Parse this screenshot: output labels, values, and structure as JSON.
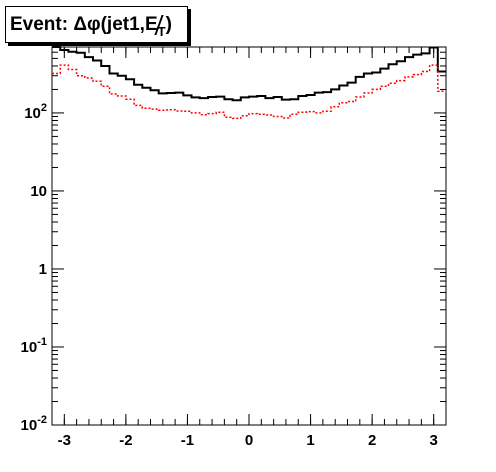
{
  "chart_data": {
    "type": "histogram",
    "title": {
      "prefix": "Event: ",
      "delta": "Δ",
      "phi": "φ",
      "args": "(jet1,",
      "met": "E",
      "met_sub": "T",
      "close": ")"
    },
    "xlabel": "",
    "ylabel": "",
    "xlim": [
      -3.2,
      3.2
    ],
    "ylim": [
      0.01,
      700
    ],
    "yscale": "log",
    "x_ticks": [
      -3,
      -2,
      -1,
      0,
      1,
      2,
      3
    ],
    "x_tick_labels": [
      "-3",
      "-2",
      "-1",
      "0",
      "1",
      "2",
      "3"
    ],
    "y_ticks": [
      {
        "value": 0.01,
        "base": "10",
        "exp": "-2"
      },
      {
        "value": 0.1,
        "base": "10",
        "exp": "-1"
      },
      {
        "value": 1,
        "base": "1",
        "exp": ""
      },
      {
        "value": 10,
        "base": "10",
        "exp": ""
      },
      {
        "value": 100,
        "base": "10",
        "exp": "2"
      }
    ],
    "series": [
      {
        "color": "#000000",
        "style": "solid",
        "values": [
          720,
          640,
          610,
          590,
          520,
          470,
          400,
          320,
          300,
          270,
          230,
          210,
          195,
          178,
          180,
          182,
          168,
          158,
          155,
          160,
          162,
          150,
          145,
          158,
          162,
          165,
          155,
          160,
          148,
          150,
          165,
          170,
          182,
          185,
          200,
          225,
          245,
          290,
          320,
          330,
          370,
          420,
          460,
          520,
          560,
          580,
          690,
          340
        ]
      },
      {
        "color": "#ff0000",
        "style": "dotted",
        "values": [
          320,
          410,
          360,
          300,
          280,
          255,
          220,
          175,
          165,
          150,
          125,
          115,
          112,
          108,
          110,
          106,
          105,
          100,
          95,
          98,
          102,
          88,
          85,
          92,
          98,
          96,
          94,
          90,
          86,
          96,
          102,
          104,
          100,
          105,
          120,
          135,
          140,
          160,
          180,
          200,
          220,
          240,
          260,
          290,
          310,
          340,
          410,
          190
        ]
      }
    ]
  }
}
